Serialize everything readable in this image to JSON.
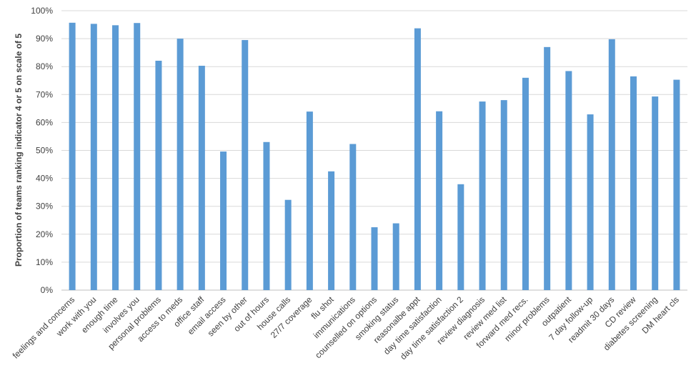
{
  "chart_data": {
    "type": "bar",
    "title": "",
    "xlabel": "",
    "ylabel": "Proportion of teams ranking indicator 4 or 5 on scale of 5",
    "ylim": [
      0,
      100
    ],
    "y_ticks": [
      "0%",
      "10%",
      "20%",
      "30%",
      "40%",
      "50%",
      "60%",
      "70%",
      "80%",
      "90%",
      "100%"
    ],
    "grid": true,
    "bar_color": "#5b9bd5",
    "categories": [
      "feelings and concerns",
      "work with you",
      "enough time",
      "involves you",
      "personal problems",
      "access to meds",
      "office staff",
      "email access",
      "seen by other",
      "out of hours",
      "house calls",
      "27/7 coverage",
      "flu shot",
      "immunications",
      "counselled on options",
      "smoking status",
      "reasonalbe appt",
      "day time satisfaction",
      "day time satisfaction 2",
      "review diagnosis",
      "review med list",
      "forward med recs.",
      "minor problems",
      "outpatient",
      "7 day follow-up",
      "readmit 30 days",
      "CD review",
      "diabetes screening",
      "DM heart cls"
    ],
    "values": [
      95.7,
      95.3,
      94.8,
      95.6,
      82.1,
      90.0,
      80.3,
      49.6,
      89.5,
      53.0,
      32.3,
      63.9,
      42.5,
      52.3,
      22.5,
      23.9,
      93.7,
      64.0,
      37.9,
      67.5,
      68.0,
      76.0,
      87.0,
      78.4,
      62.9,
      89.8,
      76.5,
      69.3,
      75.3
    ]
  }
}
